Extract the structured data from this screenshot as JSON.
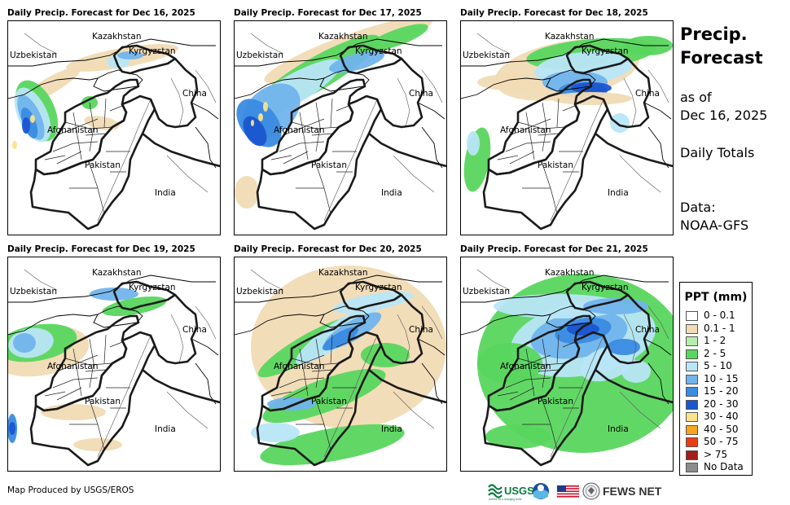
{
  "panels": [
    {
      "title": "Daily Precip. Forecast for Dec 16, 2025",
      "day": 0
    },
    {
      "title": "Daily Precip. Forecast for Dec 17, 2025",
      "day": 1
    },
    {
      "title": "Daily Precip. Forecast for Dec 18, 2025",
      "day": 2
    },
    {
      "title": "Daily Precip. Forecast for Dec 19, 2025",
      "day": 3
    },
    {
      "title": "Daily Precip. Forecast for Dec 20, 2025",
      "day": 4
    },
    {
      "title": "Daily Precip. Forecast for Dec 21, 2025",
      "day": 5
    }
  ],
  "map_labels": {
    "kazakhstan": "Kazakhstan",
    "uzbekistan": "Uzbekistan",
    "kyrgyzstan": "Kyrgyzstan",
    "china": "China",
    "afghanistan": "Afghanistan",
    "pakistan": "Pakistan",
    "india": "India"
  },
  "sidebar": {
    "title_line1": "Precip.",
    "title_line2": "Forecast",
    "asof_line1": "as of",
    "asof_line2": "Dec 16, 2025",
    "totals": "Daily Totals",
    "data_line1": "Data:",
    "data_line2": "NOAA-GFS"
  },
  "legend": {
    "title": "PPT (mm)",
    "items": [
      {
        "label": "0 - 0.1",
        "color": "#ffffff"
      },
      {
        "label": "0.1 - 1",
        "color": "#f1dbb5"
      },
      {
        "label": "1 - 2",
        "color": "#b5efae"
      },
      {
        "label": "2 - 5",
        "color": "#58d65e"
      },
      {
        "label": "5 - 10",
        "color": "#b8e6f7"
      },
      {
        "label": "10 - 15",
        "color": "#71b4ec"
      },
      {
        "label": "15 - 20",
        "color": "#3a8be2"
      },
      {
        "label": "20 - 30",
        "color": "#1a56d0"
      },
      {
        "label": "30 - 40",
        "color": "#fbe38c"
      },
      {
        "label": "40 - 50",
        "color": "#f7a51a"
      },
      {
        "label": "50 - 75",
        "color": "#ee3a12"
      },
      {
        "label": "> 75",
        "color": "#a61b1b"
      },
      {
        "label": "No Data",
        "color": "#8c8c8c"
      }
    ]
  },
  "footer": {
    "credit": "Map Produced by USGS/EROS"
  },
  "logos": {
    "usgs": "USGS",
    "usgs_tag": "science for a changing world",
    "fews": "FEWS NET"
  }
}
